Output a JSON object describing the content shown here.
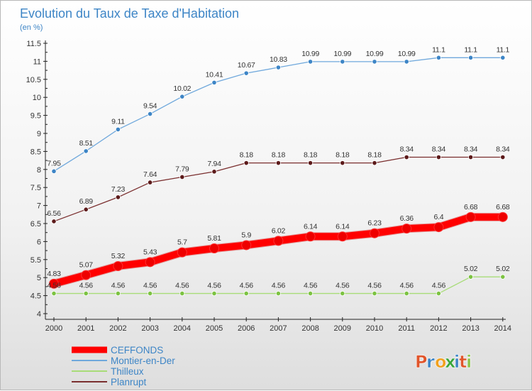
{
  "chart_data": {
    "type": "line",
    "title": "Evolution du Taux de Taxe d'Habitation",
    "subtitle": "(en %)",
    "x": [
      "2000",
      "2001",
      "2002",
      "2003",
      "2004",
      "2005",
      "2006",
      "2007",
      "2008",
      "2009",
      "2010",
      "2011",
      "2012",
      "2013",
      "2014"
    ],
    "ylim": [
      4,
      11.5
    ],
    "yticks": [
      "4",
      "4.5",
      "5",
      "5.5",
      "6",
      "6.5",
      "7",
      "7.5",
      "8",
      "8.5",
      "9",
      "9.5",
      "10",
      "10.5",
      "11",
      "11.5"
    ],
    "grid": false,
    "legend_position": "bottom-left",
    "series": [
      {
        "name": "Montier-en-Der",
        "color": "#6fa8dc",
        "marker_color": "#3d85c6",
        "line_style": "thin",
        "values": [
          7.95,
          8.51,
          9.11,
          9.54,
          10.02,
          10.41,
          10.67,
          10.83,
          10.99,
          10.99,
          10.99,
          10.99,
          11.1,
          11.1,
          11.1
        ],
        "labels": [
          "7.95",
          "8.51",
          "9.11",
          "9.54",
          "10.02",
          "10.41",
          "10.67",
          "10.83",
          "10.99",
          "10.99",
          "10.99",
          "10.99",
          "11.1",
          "11.1",
          "11.1"
        ]
      },
      {
        "name": "Planrupt",
        "color": "#7a2e2e",
        "marker_color": "#5c1a1a",
        "line_style": "thin",
        "values": [
          6.56,
          6.89,
          7.23,
          7.64,
          7.79,
          7.94,
          8.18,
          8.18,
          8.18,
          8.18,
          8.18,
          8.34,
          8.34,
          8.34,
          8.34
        ],
        "labels": [
          "6.56",
          "6.89",
          "7.23",
          "7.64",
          "7.79",
          "7.94",
          "8.18",
          "8.18",
          "8.18",
          "8.18",
          "8.18",
          "8.34",
          "8.34",
          "8.34",
          "8.34"
        ]
      },
      {
        "name": "CEFFONDS",
        "color": "#ff0000",
        "marker_color": "#ee0000",
        "line_style": "thick",
        "values": [
          4.83,
          5.07,
          5.32,
          5.43,
          5.7,
          5.81,
          5.9,
          6.02,
          6.14,
          6.14,
          6.23,
          6.36,
          6.4,
          6.68,
          6.68
        ],
        "labels": [
          "4.83",
          "5.07",
          "5.32",
          "5.43",
          "5.7",
          "5.81",
          "5.9",
          "6.02",
          "6.14",
          "6.14",
          "6.23",
          "6.36",
          "6.4",
          "6.68",
          "6.68"
        ]
      },
      {
        "name": "Thilleux",
        "color": "#a8dc78",
        "marker_color": "#7cc242",
        "line_style": "thin",
        "values": [
          4.56,
          4.56,
          4.56,
          4.56,
          4.56,
          4.56,
          4.56,
          4.56,
          4.56,
          4.56,
          4.56,
          4.56,
          4.56,
          5.02,
          5.02
        ],
        "labels": [
          "4.56",
          "4.56",
          "4.56",
          "4.56",
          "4.56",
          "4.56",
          "4.56",
          "4.56",
          "4.56",
          "4.56",
          "4.56",
          "4.56",
          "4.56",
          "5.02",
          "5.02"
        ]
      }
    ],
    "legend": [
      {
        "name": "CEFFONDS",
        "color": "#ff0000",
        "style": "thick"
      },
      {
        "name": "Montier-en-Der",
        "color": "#6fa8dc",
        "style": "thin"
      },
      {
        "name": "Thilleux",
        "color": "#a8dc78",
        "style": "thin"
      },
      {
        "name": "Planrupt",
        "color": "#7a2e2e",
        "style": "thin"
      }
    ]
  },
  "branding": {
    "logo_text": "Proxiti",
    "letter_colors": [
      "#e0552b",
      "#3d85c6",
      "#f0a01e",
      "#3aa63a",
      "#3d85c6",
      "#e0552b",
      "#8bc34a"
    ]
  },
  "colors": {
    "title": "#3d85c6",
    "axis_text": "#333333",
    "legend_text": "#3d85c6"
  }
}
